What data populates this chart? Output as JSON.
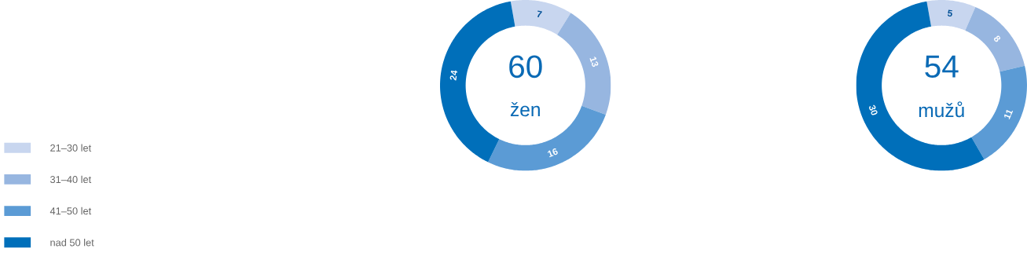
{
  "chart_data": [
    {
      "type": "donut",
      "categories": [
        "21–30 let",
        "31–40 let",
        "41–50 let",
        "nad 50 let"
      ],
      "values": [
        7,
        13,
        16,
        24
      ],
      "colors": [
        "#c8d6ef",
        "#97b6e0",
        "#5b9bd5",
        "#006fba"
      ],
      "data_labels": true,
      "legend": "left",
      "annotations": [
        "60",
        "žen"
      ]
    },
    {
      "type": "donut",
      "categories": [
        null,
        null,
        null,
        null
      ],
      "values": [
        5,
        8,
        11,
        30
      ],
      "colors": [
        "#c8d6ef",
        "#97b6e0",
        "#5b9bd5",
        "#006fba"
      ],
      "data_labels": true,
      "annotations": [
        "54",
        "mužů"
      ]
    }
  ]
}
